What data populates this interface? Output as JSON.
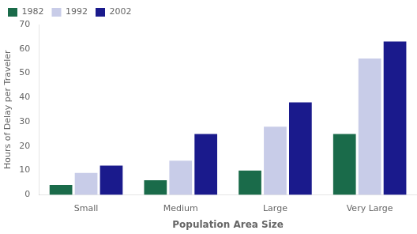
{
  "chart_data": {
    "type": "bar",
    "categories": [
      "Small",
      "Medium",
      "Large",
      "Very Large"
    ],
    "series": [
      {
        "name": "1982",
        "color": "#1a6b4a",
        "values": [
          4,
          6,
          10,
          25
        ]
      },
      {
        "name": "1992",
        "color": "#c8cce8",
        "values": [
          9,
          14,
          28,
          56
        ]
      },
      {
        "name": "2002",
        "color": "#1a1a8c",
        "values": [
          12,
          25,
          38,
          63
        ]
      }
    ],
    "xlabel": "Population Area Size",
    "ylabel": "Hours of Delay per Traveler",
    "ylim": [
      0,
      70
    ],
    "yticks": [
      0,
      10,
      20,
      30,
      40,
      50,
      60,
      70
    ],
    "grid": false,
    "legend": "upper left"
  }
}
